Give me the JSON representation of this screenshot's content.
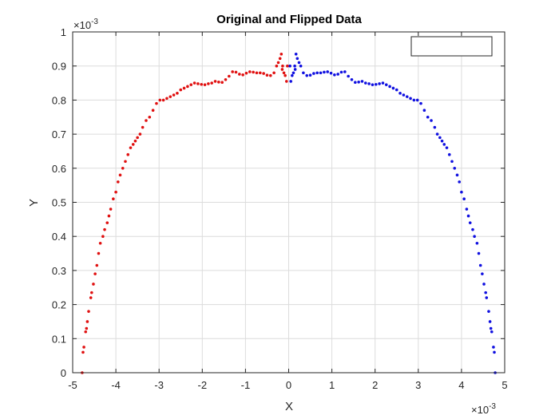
{
  "chart_data": {
    "type": "scatter",
    "title": "Original and Flipped Data",
    "xlabel": "X",
    "ylabel": "Y",
    "x_exponent": {
      "base": "×10",
      "power": "-3"
    },
    "y_exponent": {
      "base": "×10",
      "power": "-3"
    },
    "xlim": [
      -5,
      5
    ],
    "ylim": [
      0,
      1
    ],
    "xticks": [
      "-5",
      "-4",
      "-3",
      "-2",
      "-1",
      "0",
      "1",
      "2",
      "3",
      "4",
      "5"
    ],
    "yticks": [
      "0",
      "0.1",
      "0.2",
      "0.3",
      "0.4",
      "0.5",
      "0.6",
      "0.7",
      "0.8",
      "0.9",
      "1"
    ],
    "grid": true,
    "legend": {
      "placement": "top-right",
      "entries": []
    },
    "colors": {
      "original": "#e01010",
      "flipped": "#1010e0",
      "grid": "#dcdcdc",
      "axis": "#262626"
    },
    "series": [
      {
        "color": "#e01010",
        "points": [
          [
            -4.78,
            0.0
          ],
          [
            -4.76,
            0.06
          ],
          [
            -4.74,
            0.075
          ],
          [
            -4.7,
            0.12
          ],
          [
            -4.68,
            0.13
          ],
          [
            -4.66,
            0.15
          ],
          [
            -4.63,
            0.18
          ],
          [
            -4.58,
            0.22
          ],
          [
            -4.56,
            0.235
          ],
          [
            -4.52,
            0.26
          ],
          [
            -4.48,
            0.29
          ],
          [
            -4.44,
            0.315
          ],
          [
            -4.4,
            0.35
          ],
          [
            -4.36,
            0.38
          ],
          [
            -4.3,
            0.4
          ],
          [
            -4.26,
            0.42
          ],
          [
            -4.2,
            0.44
          ],
          [
            -4.16,
            0.46
          ],
          [
            -4.12,
            0.48
          ],
          [
            -4.06,
            0.51
          ],
          [
            -4.0,
            0.53
          ],
          [
            -3.95,
            0.56
          ],
          [
            -3.9,
            0.58
          ],
          [
            -3.84,
            0.6
          ],
          [
            -3.78,
            0.62
          ],
          [
            -3.72,
            0.64
          ],
          [
            -3.66,
            0.66
          ],
          [
            -3.6,
            0.67
          ],
          [
            -3.55,
            0.68
          ],
          [
            -3.5,
            0.69
          ],
          [
            -3.44,
            0.7
          ],
          [
            -3.38,
            0.72
          ],
          [
            -3.3,
            0.74
          ],
          [
            -3.22,
            0.75
          ],
          [
            -3.14,
            0.77
          ],
          [
            -3.06,
            0.79
          ],
          [
            -2.98,
            0.8
          ],
          [
            -2.9,
            0.8
          ],
          [
            -2.82,
            0.805
          ],
          [
            -2.74,
            0.81
          ],
          [
            -2.66,
            0.815
          ],
          [
            -2.58,
            0.82
          ],
          [
            -2.5,
            0.83
          ],
          [
            -2.42,
            0.835
          ],
          [
            -2.34,
            0.84
          ],
          [
            -2.26,
            0.845
          ],
          [
            -2.18,
            0.85
          ],
          [
            -2.1,
            0.848
          ],
          [
            -2.02,
            0.846
          ],
          [
            -1.94,
            0.845
          ],
          [
            -1.86,
            0.848
          ],
          [
            -1.78,
            0.85
          ],
          [
            -1.7,
            0.855
          ],
          [
            -1.62,
            0.853
          ],
          [
            -1.54,
            0.852
          ],
          [
            -1.46,
            0.86
          ],
          [
            -1.38,
            0.87
          ],
          [
            -1.3,
            0.883
          ],
          [
            -1.22,
            0.882
          ],
          [
            -1.14,
            0.876
          ],
          [
            -1.06,
            0.874
          ],
          [
            -0.98,
            0.879
          ],
          [
            -0.9,
            0.883
          ],
          [
            -0.82,
            0.882
          ],
          [
            -0.74,
            0.88
          ],
          [
            -0.66,
            0.88
          ],
          [
            -0.58,
            0.878
          ],
          [
            -0.5,
            0.873
          ],
          [
            -0.42,
            0.872
          ],
          [
            -0.34,
            0.88
          ],
          [
            -0.28,
            0.9
          ],
          [
            -0.24,
            0.91
          ],
          [
            -0.2,
            0.922
          ],
          [
            -0.17,
            0.935
          ],
          [
            -0.14,
            0.9
          ],
          [
            -0.11,
            0.88
          ],
          [
            -0.08,
            0.872
          ],
          [
            -0.05,
            0.855
          ],
          [
            -0.03,
            0.9
          ],
          [
            -0.15,
            0.89
          ]
        ]
      },
      {
        "color": "#1010e0",
        "points": [
          [
            4.78,
            0.0
          ],
          [
            4.76,
            0.06
          ],
          [
            4.74,
            0.075
          ],
          [
            4.7,
            0.12
          ],
          [
            4.68,
            0.13
          ],
          [
            4.66,
            0.15
          ],
          [
            4.63,
            0.18
          ],
          [
            4.58,
            0.22
          ],
          [
            4.56,
            0.235
          ],
          [
            4.52,
            0.26
          ],
          [
            4.48,
            0.29
          ],
          [
            4.44,
            0.315
          ],
          [
            4.4,
            0.35
          ],
          [
            4.36,
            0.38
          ],
          [
            4.3,
            0.4
          ],
          [
            4.26,
            0.42
          ],
          [
            4.2,
            0.44
          ],
          [
            4.16,
            0.46
          ],
          [
            4.12,
            0.48
          ],
          [
            4.06,
            0.51
          ],
          [
            4.0,
            0.53
          ],
          [
            3.95,
            0.56
          ],
          [
            3.9,
            0.58
          ],
          [
            3.84,
            0.6
          ],
          [
            3.78,
            0.62
          ],
          [
            3.72,
            0.64
          ],
          [
            3.66,
            0.66
          ],
          [
            3.6,
            0.67
          ],
          [
            3.55,
            0.68
          ],
          [
            3.5,
            0.69
          ],
          [
            3.44,
            0.7
          ],
          [
            3.38,
            0.72
          ],
          [
            3.3,
            0.74
          ],
          [
            3.22,
            0.75
          ],
          [
            3.14,
            0.77
          ],
          [
            3.06,
            0.79
          ],
          [
            2.98,
            0.8
          ],
          [
            2.9,
            0.8
          ],
          [
            2.82,
            0.805
          ],
          [
            2.74,
            0.81
          ],
          [
            2.66,
            0.815
          ],
          [
            2.58,
            0.82
          ],
          [
            2.5,
            0.83
          ],
          [
            2.42,
            0.835
          ],
          [
            2.34,
            0.84
          ],
          [
            2.26,
            0.845
          ],
          [
            2.18,
            0.85
          ],
          [
            2.1,
            0.848
          ],
          [
            2.02,
            0.846
          ],
          [
            1.94,
            0.845
          ],
          [
            1.86,
            0.848
          ],
          [
            1.78,
            0.85
          ],
          [
            1.7,
            0.855
          ],
          [
            1.62,
            0.853
          ],
          [
            1.54,
            0.852
          ],
          [
            1.46,
            0.86
          ],
          [
            1.38,
            0.87
          ],
          [
            1.3,
            0.883
          ],
          [
            1.22,
            0.882
          ],
          [
            1.14,
            0.876
          ],
          [
            1.06,
            0.874
          ],
          [
            0.98,
            0.879
          ],
          [
            0.9,
            0.883
          ],
          [
            0.82,
            0.882
          ],
          [
            0.74,
            0.88
          ],
          [
            0.66,
            0.88
          ],
          [
            0.58,
            0.878
          ],
          [
            0.5,
            0.873
          ],
          [
            0.42,
            0.872
          ],
          [
            0.34,
            0.88
          ],
          [
            0.28,
            0.9
          ],
          [
            0.24,
            0.91
          ],
          [
            0.2,
            0.922
          ],
          [
            0.17,
            0.935
          ],
          [
            0.14,
            0.9
          ],
          [
            0.11,
            0.88
          ],
          [
            0.08,
            0.872
          ],
          [
            0.05,
            0.855
          ],
          [
            0.03,
            0.9
          ],
          [
            0.15,
            0.89
          ]
        ]
      }
    ]
  }
}
